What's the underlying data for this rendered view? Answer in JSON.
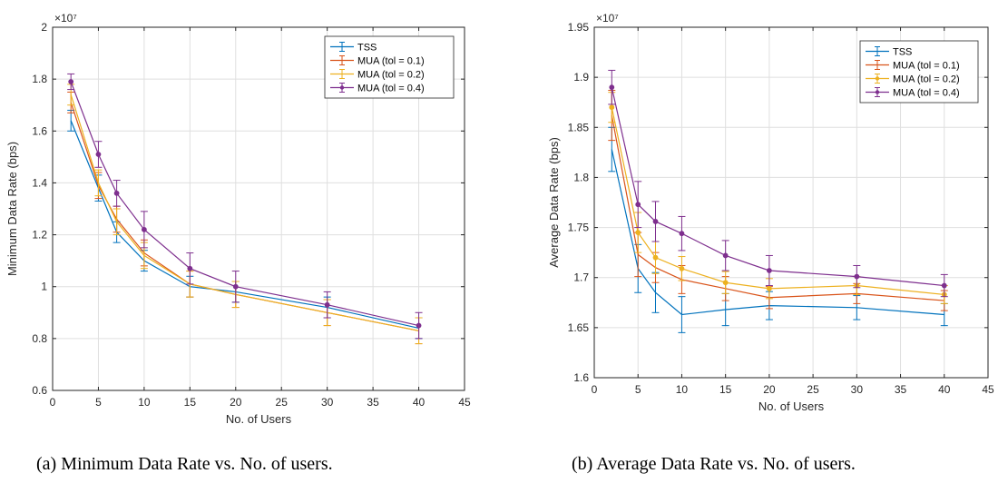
{
  "chart_data": [
    {
      "type": "line",
      "xlabel": "No. of Users",
      "ylabel": "Minimum Data Rate (bps)",
      "y_multiplier": "×10⁷",
      "xlim": [
        0,
        45
      ],
      "ylim": [
        0.6,
        2.0
      ],
      "xticks": [
        "0",
        "5",
        "10",
        "15",
        "20",
        "25",
        "30",
        "35",
        "40",
        "45"
      ],
      "yticks": [
        "0.6",
        "0.8",
        "1",
        "1.2",
        "1.4",
        "1.6",
        "1.8",
        "2"
      ],
      "grid": true,
      "legend_position": "top-right",
      "x": [
        2,
        5,
        7,
        10,
        15,
        20,
        30,
        40
      ],
      "series": [
        {
          "name": "TSS",
          "color": "#0072BD",
          "marker": "none",
          "values": [
            1.64,
            1.38,
            1.21,
            1.1,
            1.0,
            0.98,
            0.92,
            0.84
          ],
          "errors": [
            0.04,
            0.05,
            0.04,
            0.04,
            0.04,
            0.04,
            0.04,
            0.04
          ]
        },
        {
          "name": "MUA (tol = 0.1)",
          "color": "#D95319",
          "marker": "none",
          "values": [
            1.71,
            1.39,
            1.26,
            1.13,
            1.01,
            0.97,
            0.9,
            0.83
          ],
          "errors": [
            0.04,
            0.05,
            0.05,
            0.05,
            0.05,
            0.05,
            0.05,
            0.05
          ]
        },
        {
          "name": "MUA (tol = 0.2)",
          "color": "#EDB120",
          "marker": "none",
          "values": [
            1.74,
            1.4,
            1.25,
            1.12,
            1.01,
            0.97,
            0.9,
            0.83
          ],
          "errors": [
            0.04,
            0.05,
            0.05,
            0.05,
            0.05,
            0.05,
            0.05,
            0.05
          ]
        },
        {
          "name": "MUA (tol = 0.4)",
          "color": "#7E2F8E",
          "marker": "dot",
          "values": [
            1.79,
            1.51,
            1.36,
            1.22,
            1.07,
            1.0,
            0.93,
            0.85
          ],
          "errors": [
            0.03,
            0.05,
            0.05,
            0.07,
            0.06,
            0.06,
            0.05,
            0.05
          ]
        }
      ]
    },
    {
      "type": "line",
      "xlabel": "No. of Users",
      "ylabel": "Average Data Rate (bps)",
      "y_multiplier": "×10⁷",
      "xlim": [
        0,
        45
      ],
      "ylim": [
        1.6,
        1.95
      ],
      "xticks": [
        "0",
        "5",
        "10",
        "15",
        "20",
        "25",
        "30",
        "35",
        "40",
        "45"
      ],
      "yticks": [
        "1.6",
        "1.65",
        "1.7",
        "1.75",
        "1.8",
        "1.85",
        "1.9",
        "1.95"
      ],
      "grid": true,
      "legend_position": "top-right",
      "x": [
        2,
        5,
        7,
        10,
        15,
        20,
        30,
        40
      ],
      "series": [
        {
          "name": "TSS",
          "color": "#0072BD",
          "marker": "none",
          "values": [
            1.828,
            1.709,
            1.685,
            1.663,
            1.668,
            1.672,
            1.67,
            1.663
          ],
          "errors": [
            0.022,
            0.024,
            0.02,
            0.018,
            0.016,
            0.014,
            0.012,
            0.011
          ]
        },
        {
          "name": "MUA (tol = 0.1)",
          "color": "#D95319",
          "marker": "none",
          "values": [
            1.862,
            1.723,
            1.71,
            1.698,
            1.689,
            1.68,
            1.684,
            1.677
          ],
          "errors": [
            0.025,
            0.022,
            0.015,
            0.014,
            0.012,
            0.011,
            0.01,
            0.01
          ]
        },
        {
          "name": "MUA (tol = 0.2)",
          "color": "#EDB120",
          "marker": "dot",
          "values": [
            1.87,
            1.745,
            1.72,
            1.709,
            1.695,
            1.689,
            1.692,
            1.683
          ],
          "errors": [
            0.015,
            0.02,
            0.016,
            0.012,
            0.011,
            0.01,
            0.009,
            0.009
          ]
        },
        {
          "name": "MUA (tol = 0.4)",
          "color": "#7E2F8E",
          "marker": "dot",
          "values": [
            1.89,
            1.773,
            1.756,
            1.744,
            1.722,
            1.707,
            1.701,
            1.692
          ],
          "errors": [
            0.017,
            0.023,
            0.02,
            0.017,
            0.015,
            0.015,
            0.011,
            0.011
          ]
        }
      ]
    }
  ],
  "captions": {
    "a": "(a)  Minimum Data Rate vs. No. of users.",
    "b": "(b)  Average Data Rate vs. No. of users."
  }
}
